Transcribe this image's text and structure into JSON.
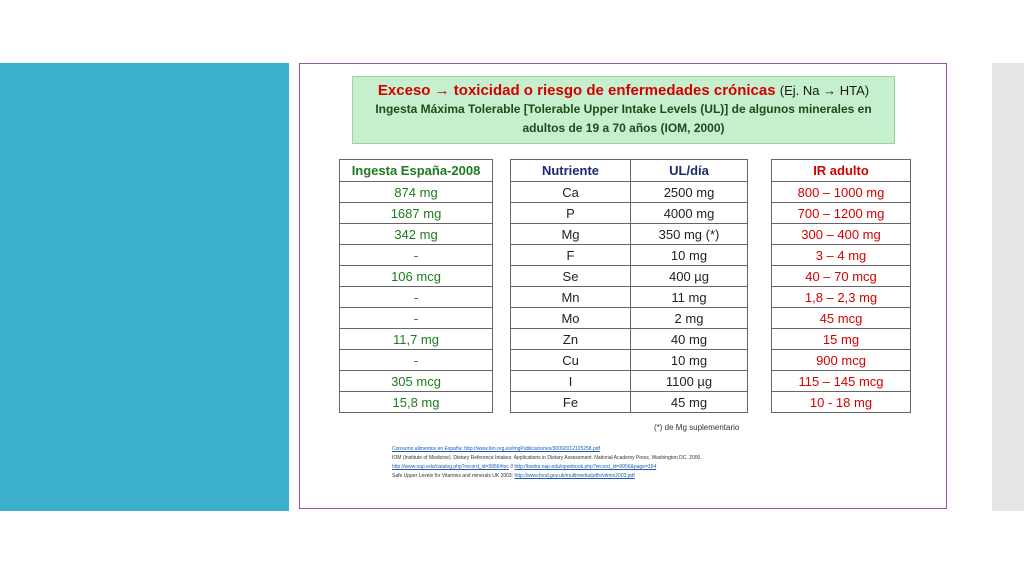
{
  "title": {
    "part1": "Exceso",
    "arrow": "→",
    "part2": "toxicidad o riesgo de enfermedades crónicas",
    "paren": "(Ej. Na → HTA)",
    "line2": "Ingesta Máxima Tolerable [Tolerable Upper Intake Levels (UL)] de algunos minerales en",
    "line3": "adultos de 19 a 70 años (IOM, 2000)"
  },
  "ingesta": {
    "header": "Ingesta España-2008",
    "values": [
      "874 mg",
      "1687 mg",
      "342 mg",
      "-",
      "106 mcg",
      "-",
      "-",
      "11,7 mg",
      "-",
      "305 mcg",
      "15,8 mg"
    ]
  },
  "nutrientes": {
    "header_nutriente": "Nutriente",
    "header_ul": "UL/día",
    "rows": [
      {
        "n": "Ca",
        "ul": "2500 mg"
      },
      {
        "n": "P",
        "ul": "4000 mg"
      },
      {
        "n": "Mg",
        "ul": "350 mg (*)"
      },
      {
        "n": "F",
        "ul": "10 mg"
      },
      {
        "n": "Se",
        "ul": "400 µg"
      },
      {
        "n": "Mn",
        "ul": "11 mg"
      },
      {
        "n": "Mo",
        "ul": "2 mg"
      },
      {
        "n": "Zn",
        "ul": "40 mg"
      },
      {
        "n": "Cu",
        "ul": "10 mg"
      },
      {
        "n": "I",
        "ul": "1100 µg"
      },
      {
        "n": "Fe",
        "ul": "45 mg"
      }
    ]
  },
  "ir": {
    "header": "IR adulto",
    "values": [
      "800 – 1000 mg",
      "700 – 1200 mg",
      "300 – 400 mg",
      "3 – 4 mg",
      "40 – 70 mcg",
      "1,8 – 2,3 mg",
      "45 mcg",
      "15 mg",
      "900 mcg",
      "115 – 145 mcg",
      "10 - 18 mg"
    ]
  },
  "note": "(*) de Mg suplementario",
  "refs": {
    "r1": "Consumo alimentos en España: http://www.fen.org.es/imgPublicaciones/30092012125258.pdf",
    "r2": "IOM (Institute of Medicine). Dietary Reference Intakes: Applications in Dietary Assessment. National Academy Press, Washington DC. 2000.",
    "r3a": "http://www.nap.edu/catalog.php?record_id=9956#toc",
    "r3sep": " // ",
    "r3b": "http://books.nap.edu/openbook.php?record_id=9956&page=154",
    "r4a": "Safe Upper Levels for Vitamins and minerals UK 2003:",
    "r4b": "http://www.food.gov.uk/multimedia/pdfs/vitmin2003.pdf"
  }
}
